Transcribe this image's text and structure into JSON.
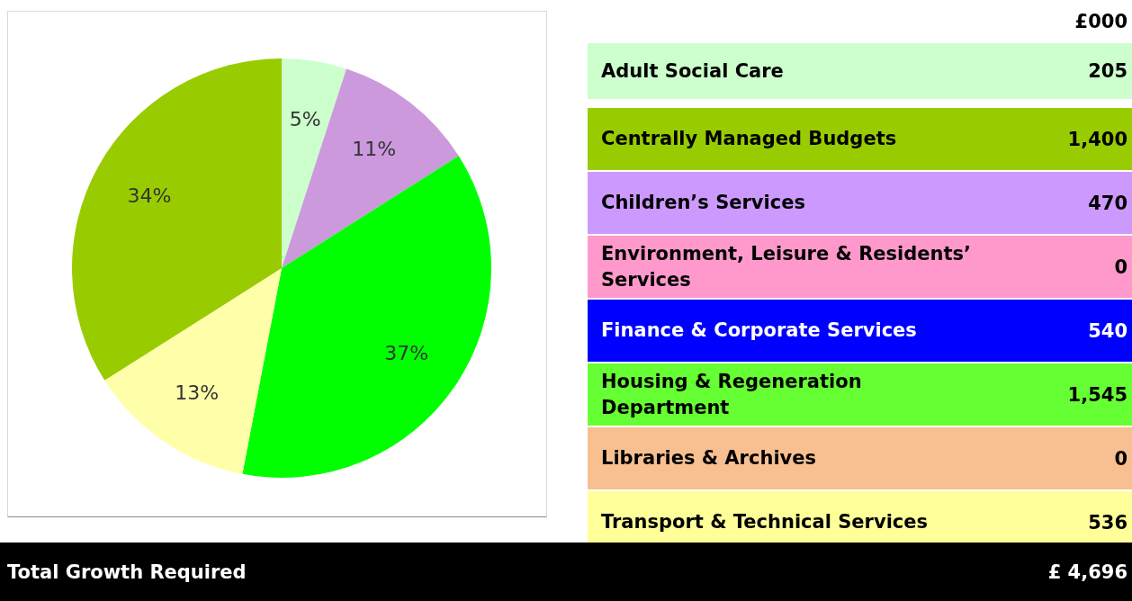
{
  "chart_data": [
    {
      "type": "pie",
      "categories": [
        null,
        null,
        null,
        null,
        null
      ],
      "values": [
        5,
        11,
        37,
        13,
        34
      ],
      "colors": [
        "#ccffcc",
        "#cc99dd",
        "#00ff00",
        "#ffffaa",
        "#99cc00"
      ],
      "value_labels": [
        "5%",
        "11%",
        "37%",
        "13%",
        "34%"
      ]
    },
    {
      "type": "other",
      "title": "£000",
      "categories": [
        "Adult Social Care",
        "Centrally Managed Budgets",
        "Children’s Services",
        "Environment, Leisure & Residents’ Services",
        "Finance & Corporate Services",
        "Housing & Regeneration Department",
        "Libraries & Archives",
        "Transport & Technical Services"
      ],
      "value_labels": [
        "205",
        "1,400",
        "470",
        "0",
        "540",
        "1,545",
        "0",
        "536"
      ],
      "colors": [
        "#ccffcc",
        "#99cc00",
        "#cc99ff",
        "#ff99cc",
        "#0000ff",
        "#66ff33",
        "#f8c090",
        "#ffff99"
      ],
      "annotations": [
        "Total Growth Required",
        "£ 4,696"
      ]
    }
  ]
}
